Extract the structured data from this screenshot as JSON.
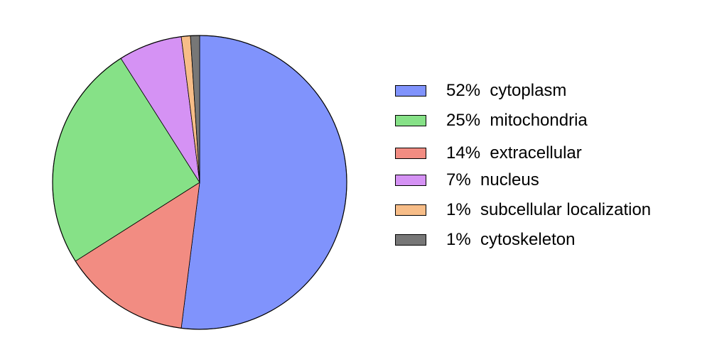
{
  "chart_data": {
    "type": "pie",
    "title": "",
    "start_angle": "top",
    "direction": "clockwise",
    "legend_position": "right",
    "slices": [
      {
        "label": "52%  cytoplasm",
        "value": 52,
        "color": "#8093fc"
      },
      {
        "label": "14%  extracellular",
        "value": 14,
        "color": "#f28c82"
      },
      {
        "label": "25%  mitochondria",
        "value": 25,
        "color": "#86e187"
      },
      {
        "label": "7%  nucleus",
        "value": 7,
        "color": "#d592f4"
      },
      {
        "label": "1%  subcellular localization",
        "value": 1,
        "color": "#f7bd88"
      },
      {
        "label": "1%  cytoskeleton",
        "value": 1,
        "color": "#777777"
      }
    ],
    "legend": [
      {
        "label": "52%  cytoplasm",
        "color": "#8093fc"
      },
      {
        "label": "25%  mitochondria",
        "color": "#86e187"
      },
      {
        "label": "14%  extracellular",
        "color": "#f28c82"
      },
      {
        "label": "7%  nucleus",
        "color": "#d592f4"
      },
      {
        "label": "1%  subcellular localization",
        "color": "#f7bd88"
      },
      {
        "label": "1%  cytoskeleton",
        "color": "#777777"
      }
    ]
  }
}
